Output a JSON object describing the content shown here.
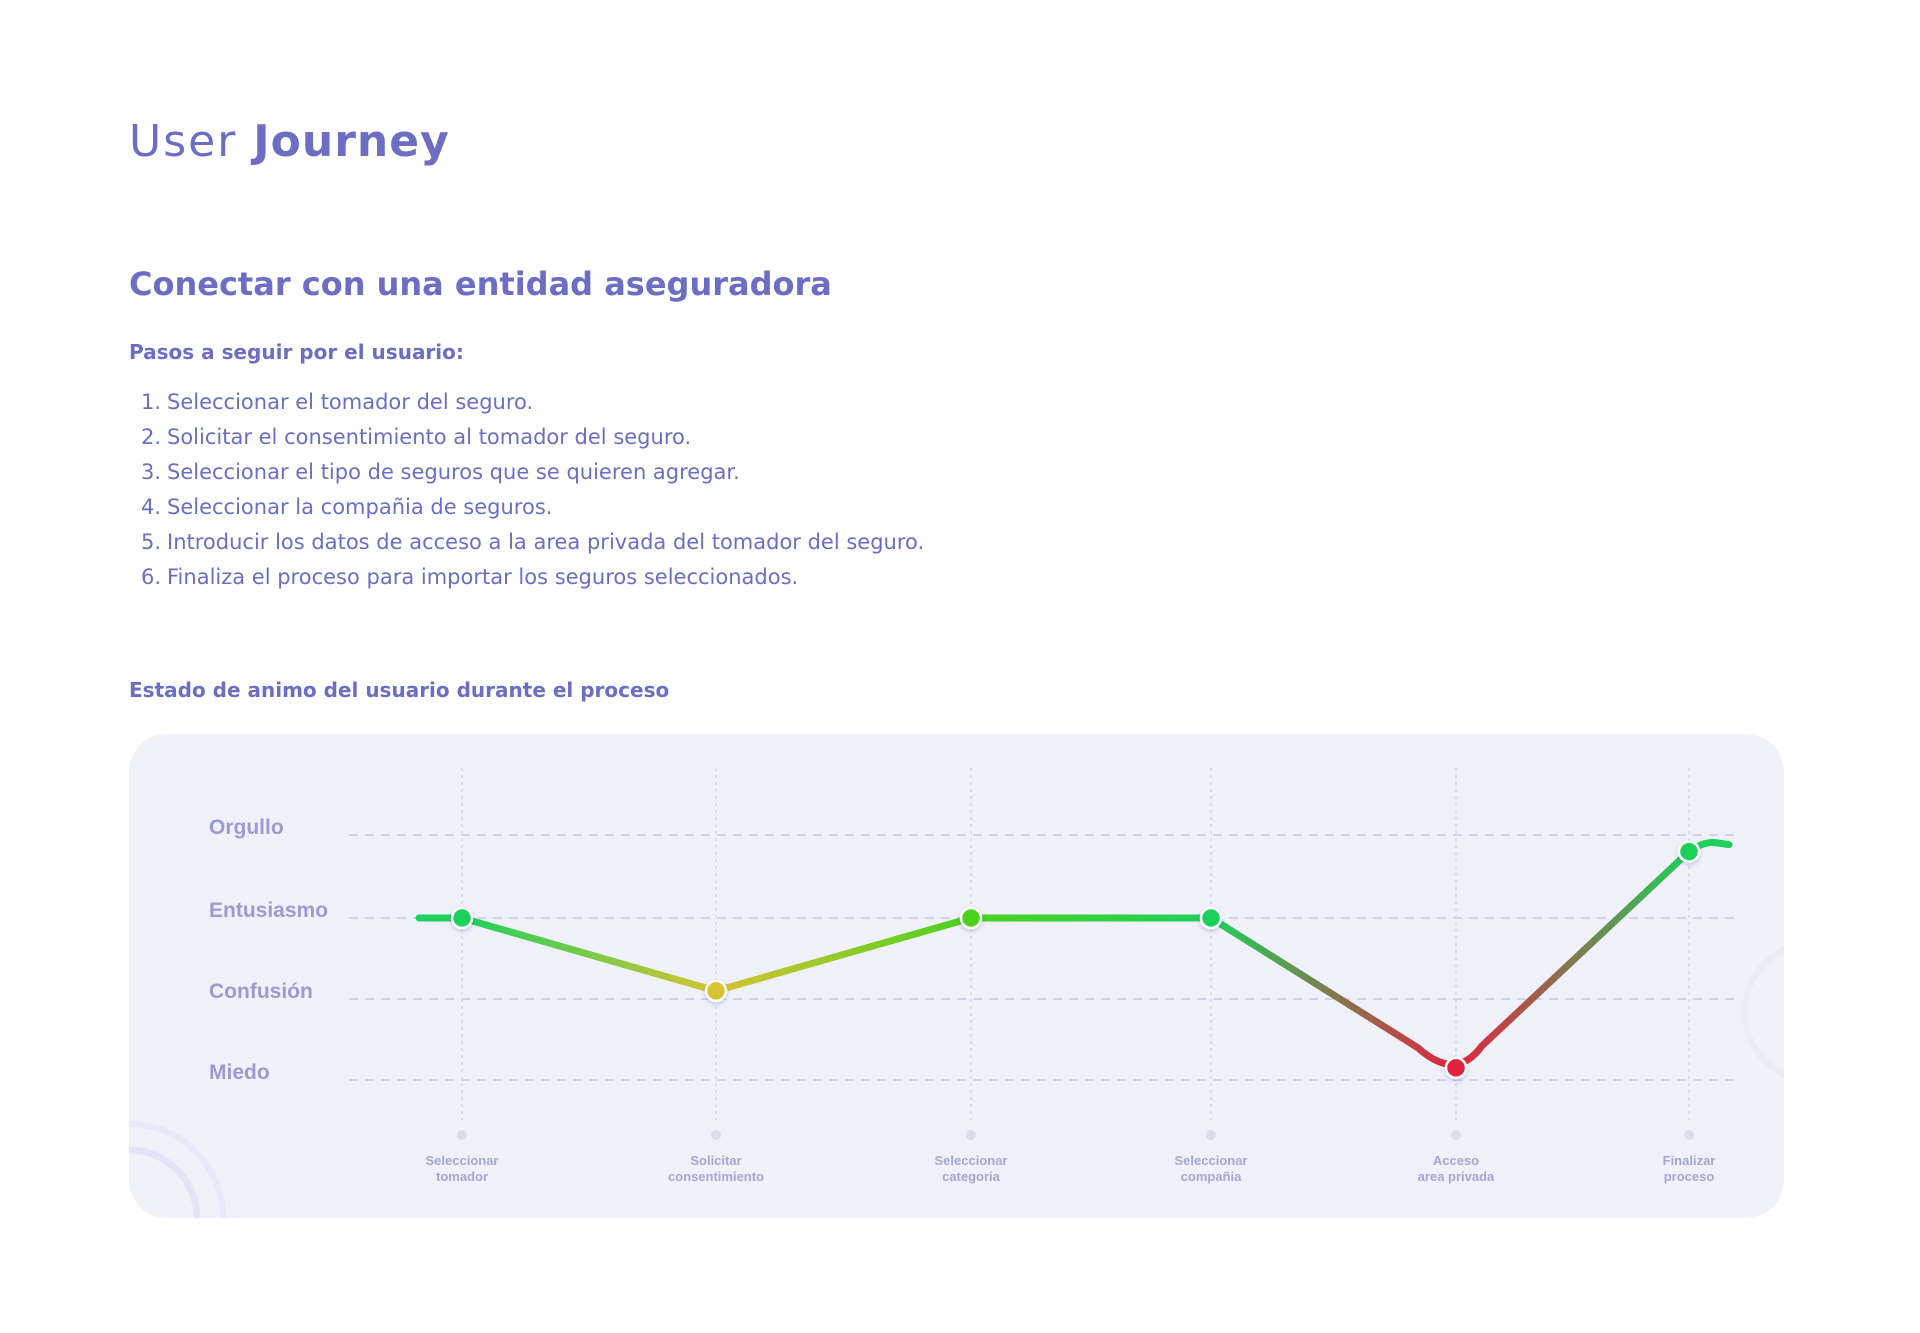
{
  "header": {
    "title_light": "User",
    "title_bold": "Journey"
  },
  "section": {
    "title": "Conectar con una entidad aseguradora",
    "steps_heading": "Pasos a seguir por el usuario:",
    "steps": [
      {
        "num": "1.",
        "text": "Seleccionar el tomador del seguro."
      },
      {
        "num": "2.",
        "text": "Solicitar el consentimiento al tomador del seguro."
      },
      {
        "num": "3.",
        "text": "Seleccionar el tipo de seguros que se quieren agregar."
      },
      {
        "num": "4.",
        "text": "Seleccionar la compañia de seguros."
      },
      {
        "num": "5.",
        "text": "Introducir los datos de acceso a la area privada del tomador del seguro."
      },
      {
        "num": "6.",
        "text": "Finaliza el proceso para importar los seguros seleccionados."
      }
    ],
    "chart_heading": "Estado de animo del usuario durante el proceso"
  },
  "colors": {
    "accent": "#6b6ec2",
    "good": "#1fd05c",
    "neutral": "#d6c433",
    "bad": "#e3233f",
    "card": "#f1f1fc"
  },
  "chart_data": {
    "type": "line",
    "y_categories": [
      "Miedo",
      "Confusión",
      "Entusiasmo",
      "Orgullo"
    ],
    "categories": [
      [
        "Seleccionar",
        "tomador"
      ],
      [
        "Solicitar",
        "consentimiento"
      ],
      [
        "Seleccionar",
        "categoria"
      ],
      [
        "Seleccionar",
        "compañia"
      ],
      [
        "Acceso",
        "area privada"
      ],
      [
        "Finalizar",
        "proceso"
      ]
    ],
    "series": [
      {
        "values": [
          2,
          1.1,
          2,
          2,
          0.15,
          2.8
        ]
      }
    ],
    "point_colors": [
      "#1fd05c",
      "#d6c433",
      "#49d21f",
      "#1fd05c",
      "#e3233f",
      "#1fd05c"
    ],
    "grid": true
  }
}
